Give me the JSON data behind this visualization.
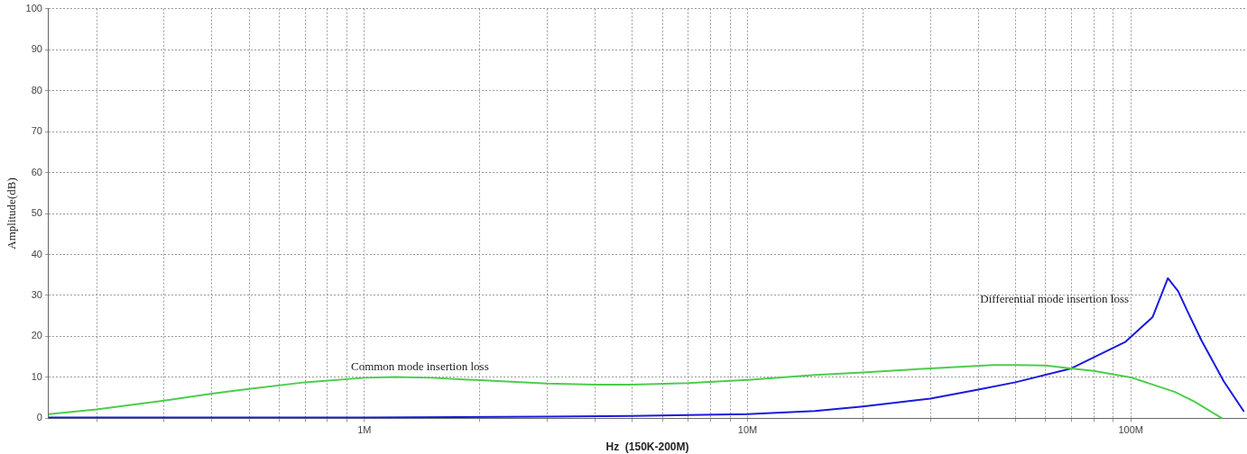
{
  "chart_data": {
    "type": "line",
    "xlabel": "Hz  (150K-200M)",
    "ylabel": "Amplitude(dB)",
    "log": "x",
    "grid": true,
    "legend": false,
    "marker": "none",
    "line_style": "solid",
    "xlim": [
      150000,
      200000000
    ],
    "ylim": [
      0,
      100
    ],
    "xticks": [
      {
        "value": 200000,
        "label": null
      },
      {
        "value": 300000,
        "label": null
      },
      {
        "value": 400000,
        "label": null
      },
      {
        "value": 500000,
        "label": null
      },
      {
        "value": 600000,
        "label": null
      },
      {
        "value": 700000,
        "label": null
      },
      {
        "value": 800000,
        "label": null
      },
      {
        "value": 900000,
        "label": null
      },
      {
        "value": 1000000,
        "label": "1M"
      },
      {
        "value": 2000000,
        "label": null
      },
      {
        "value": 3000000,
        "label": null
      },
      {
        "value": 4000000,
        "label": null
      },
      {
        "value": 5000000,
        "label": null
      },
      {
        "value": 6000000,
        "label": null
      },
      {
        "value": 7000000,
        "label": null
      },
      {
        "value": 8000000,
        "label": null
      },
      {
        "value": 9000000,
        "label": null
      },
      {
        "value": 10000000,
        "label": "10M"
      },
      {
        "value": 20000000,
        "label": null
      },
      {
        "value": 30000000,
        "label": null
      },
      {
        "value": 40000000,
        "label": null
      },
      {
        "value": 50000000,
        "label": null
      },
      {
        "value": 60000000,
        "label": null
      },
      {
        "value": 70000000,
        "label": null
      },
      {
        "value": 80000000,
        "label": null
      },
      {
        "value": 90000000,
        "label": null
      },
      {
        "value": 100000000,
        "label": "100M"
      }
    ],
    "yticks": [
      0,
      10,
      20,
      30,
      40,
      50,
      60,
      70,
      80,
      90,
      100
    ],
    "series": [
      {
        "name": "Common mode insertion loss",
        "color": "#4ccd4c",
        "x": [
          150000,
          200000,
          300000,
          400000,
          500000,
          700000,
          1000000,
          1200000,
          1500000,
          2000000,
          3000000,
          4000000,
          5000000,
          7000000,
          10000000,
          15000000,
          20000000,
          30000000,
          43700000,
          50000000,
          60000000,
          69700000,
          80000000,
          100000000,
          130000000,
          146000000,
          173000000
        ],
        "values": [
          1,
          2.2,
          4.3,
          6,
          7.2,
          8.8,
          9.9,
          10.1,
          9.9,
          9.3,
          8.5,
          8.2,
          8.2,
          8.6,
          9.4,
          10.6,
          11.2,
          12.2,
          13,
          13,
          12.9,
          12.2,
          11.6,
          10,
          6.5,
          4.2,
          0
        ]
      },
      {
        "name": "Differential mode insertion loss",
        "color": "#1a1adc",
        "x": [
          150000,
          1000000,
          3000000,
          5000000,
          10000000,
          15000000,
          20000000,
          30000000,
          40000000,
          50000000,
          70000000,
          97000000,
          114000000,
          125000000,
          133000000,
          141000000,
          153000000,
          175000000,
          197000000
        ],
        "values": [
          0.2,
          0.2,
          0.4,
          0.6,
          1,
          1.8,
          2.9,
          4.8,
          7,
          8.8,
          12.2,
          18.7,
          24.7,
          34.2,
          31,
          25.9,
          19,
          9,
          1.8
        ]
      }
    ]
  }
}
